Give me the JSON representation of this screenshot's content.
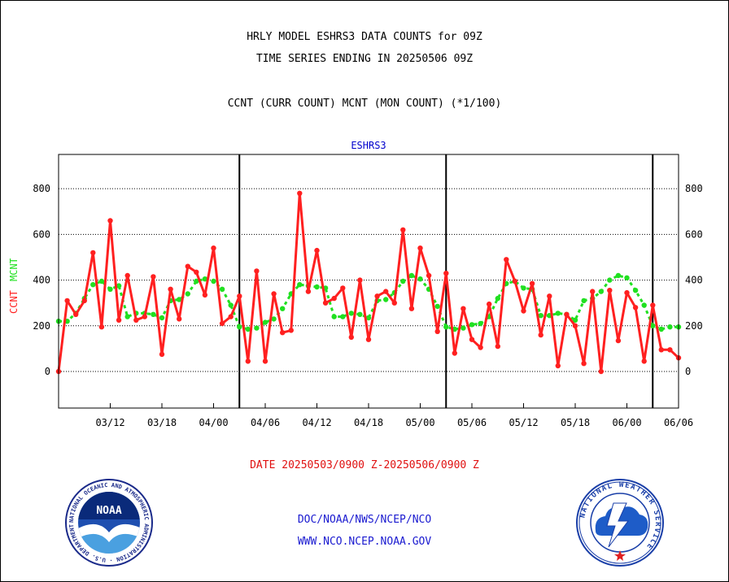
{
  "header": {
    "title_line1": "HRLY MODEL ESHRS3 DATA COUNTS for 09Z",
    "title_line2": "TIME SERIES ENDING IN 20250506 09Z",
    "title_line3": "CCNT (CURR COUNT) MCNT (MON COUNT) (*1/100)"
  },
  "chart_data": {
    "type": "line",
    "title": "ESHRS3",
    "ylabel_parts": [
      "CCNT",
      "MCNT"
    ],
    "xlabel": "DATE 20250503/0900 Z-20250506/0900 Z",
    "ylim": [
      -160,
      950
    ],
    "yticks": [
      0,
      200,
      400,
      600,
      800
    ],
    "ytick_labels": [
      "0",
      "200",
      "400",
      "600",
      "800"
    ],
    "xticks": [
      6,
      12,
      18,
      24,
      30,
      36,
      42,
      48,
      54,
      60,
      66,
      72
    ],
    "xtick_labels": [
      "03/12",
      "03/18",
      "04/00",
      "04/06",
      "04/12",
      "04/18",
      "05/00",
      "05/06",
      "05/12",
      "05/18",
      "06/00",
      "06/06"
    ],
    "xlim": [
      0,
      72
    ],
    "day_dividers": [
      21,
      45,
      69
    ],
    "grid": true,
    "series": [
      {
        "name": "CCNT",
        "color": "#ff2020",
        "values": [
          0,
          310,
          250,
          310,
          520,
          195,
          660,
          225,
          420,
          225,
          240,
          415,
          75,
          360,
          230,
          460,
          435,
          335,
          540,
          210,
          240,
          330,
          45,
          440,
          45,
          340,
          170,
          180,
          780,
          350,
          530,
          300,
          320,
          365,
          150,
          400,
          140,
          330,
          350,
          300,
          620,
          275,
          540,
          420,
          175,
          430,
          80,
          275,
          140,
          105,
          295,
          110,
          490,
          395,
          265,
          385,
          160,
          330,
          25,
          250,
          200,
          35,
          350,
          0,
          355,
          135,
          345,
          280,
          45,
          290,
          95,
          95,
          60
        ]
      },
      {
        "name": "MCNT",
        "color": "#20e020",
        "values": [
          220,
          220,
          255,
          320,
          380,
          395,
          360,
          375,
          240,
          255,
          255,
          250,
          235,
          310,
          315,
          340,
          395,
          405,
          395,
          360,
          290,
          195,
          185,
          190,
          215,
          230,
          275,
          340,
          380,
          375,
          370,
          365,
          240,
          240,
          255,
          250,
          235,
          310,
          315,
          345,
          395,
          420,
          405,
          360,
          285,
          195,
          185,
          190,
          205,
          210,
          240,
          320,
          385,
          395,
          365,
          360,
          245,
          245,
          255,
          250,
          225,
          310,
          320,
          350,
          400,
          420,
          410,
          355,
          290,
          200,
          185,
          195,
          195
        ]
      }
    ]
  },
  "credits": {
    "line1": "DOC/NOAA/NWS/NCEP/NCO",
    "line2": "WWW.NCO.NCEP.NOAA.GOV"
  },
  "logos": {
    "left_icon": "noaa-logo-icon",
    "left_text": "NOAA",
    "left_ring": "NATIONAL OCEANIC AND ATMOSPHERIC ADMINISTRATION · U.S. DEPARTMENT OF COMMERCE",
    "right_icon": "nws-logo-icon",
    "right_ring": "NATIONAL WEATHER SERVICE"
  },
  "colors": {
    "ccnt": "#ff2020",
    "mcnt": "#20e020",
    "subtitle": "#0000cc",
    "credits": "#1a1ad0",
    "date_caption": "#e01010"
  }
}
